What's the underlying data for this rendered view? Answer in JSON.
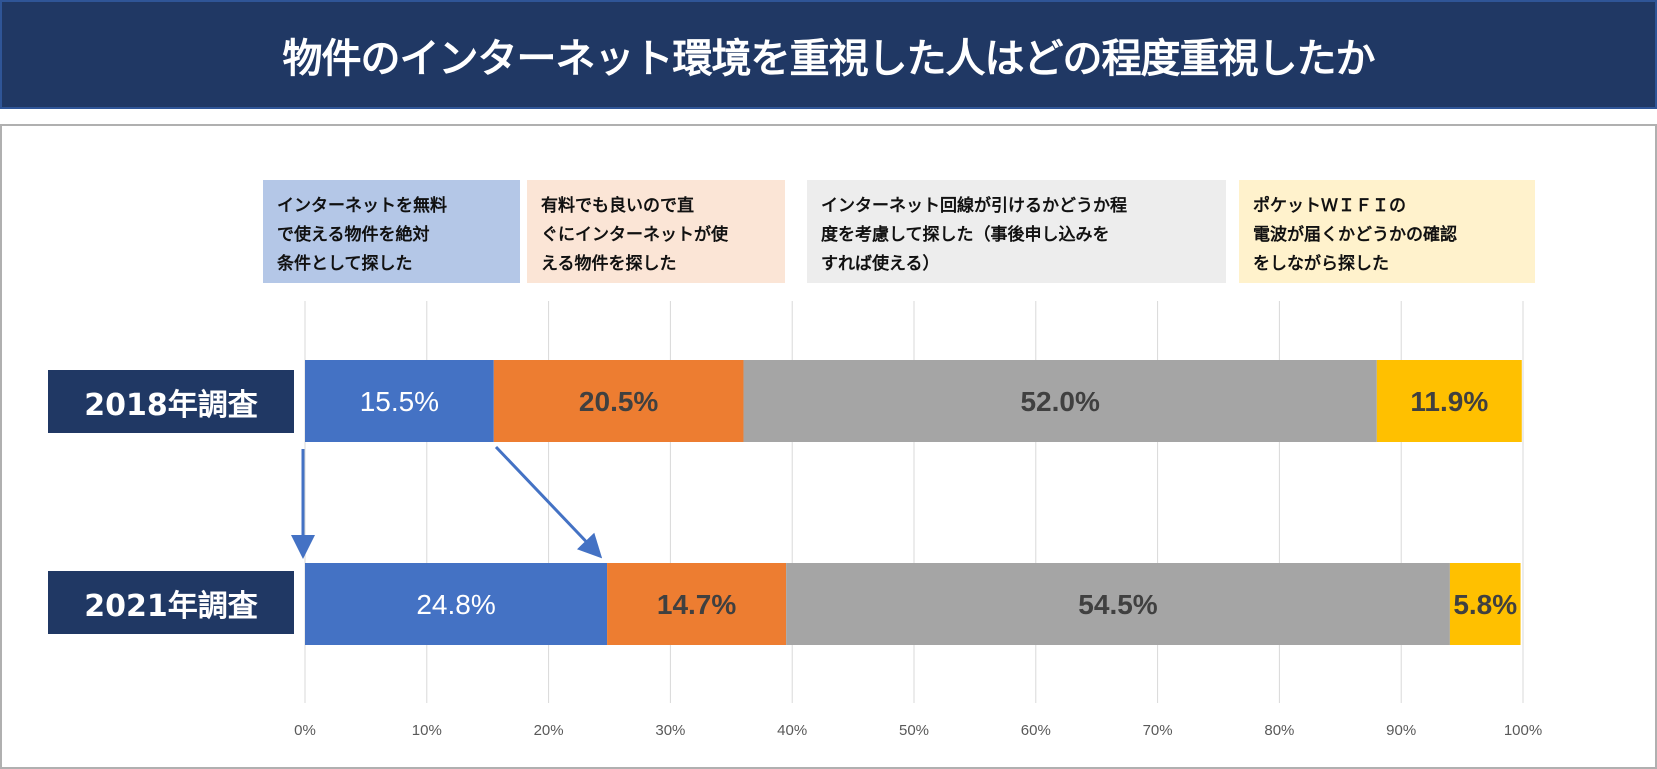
{
  "title": "物件のインターネット環境を重視した人はどの程度重視したか",
  "chart_data": {
    "type": "bar",
    "orientation": "horizontal-stacked-100",
    "categories": [
      "2018年調査",
      "2021年調査"
    ],
    "series": [
      {
        "name": "インターネットを無料で使える物件を絶対条件として探した",
        "color": "#4472c4",
        "legend_bg": "#b4c7e7",
        "values": [
          15.5,
          24.8
        ],
        "labels": [
          "15.5%",
          "24.8%"
        ],
        "label_color": "#ffffff"
      },
      {
        "name": "有料でも良いので直ぐにインターネットが使える物件を探した",
        "color": "#ed7d31",
        "legend_bg": "#fbe5d6",
        "values": [
          20.5,
          14.7
        ],
        "labels": [
          "20.5%",
          "14.7%"
        ],
        "label_color": "#404040"
      },
      {
        "name": "インターネット回線が引けるかどうか程度を考慮して探した（事後申し込みをすれば使える）",
        "color": "#a5a5a5",
        "legend_bg": "#ededed",
        "values": [
          52.0,
          54.5
        ],
        "labels": [
          "52.0%",
          "54.5%"
        ],
        "label_color": "#404040"
      },
      {
        "name": "ポケットＷＩＦＩの電波が届くかどうかの確認をしながら探した",
        "color": "#ffc000",
        "legend_bg": "#fff2cc",
        "values": [
          11.9,
          5.8
        ],
        "labels": [
          "11.9%",
          "5.8%"
        ],
        "label_color": "#404040"
      }
    ],
    "xlim": [
      0,
      100
    ],
    "x_ticks": [
      "0%",
      "10%",
      "20%",
      "30%",
      "40%",
      "50%",
      "60%",
      "70%",
      "80%",
      "90%",
      "100%"
    ],
    "grid": true,
    "legend_placement": "top"
  },
  "legend_lines": [
    [
      "インターネットを無料",
      "で使える物件を絶対",
      "条件として探した"
    ],
    [
      "有料でも良いので直",
      "ぐにインターネットが使",
      "える物件を探した"
    ],
    [
      "インターネット回線が引けるかどうか程",
      "度を考慮して探した（事後申し込みを",
      "すれば使える）"
    ],
    [
      "ポケットＷＩＦＩの",
      "電波が届くかどうかの確認",
      "をしながら探した"
    ]
  ]
}
